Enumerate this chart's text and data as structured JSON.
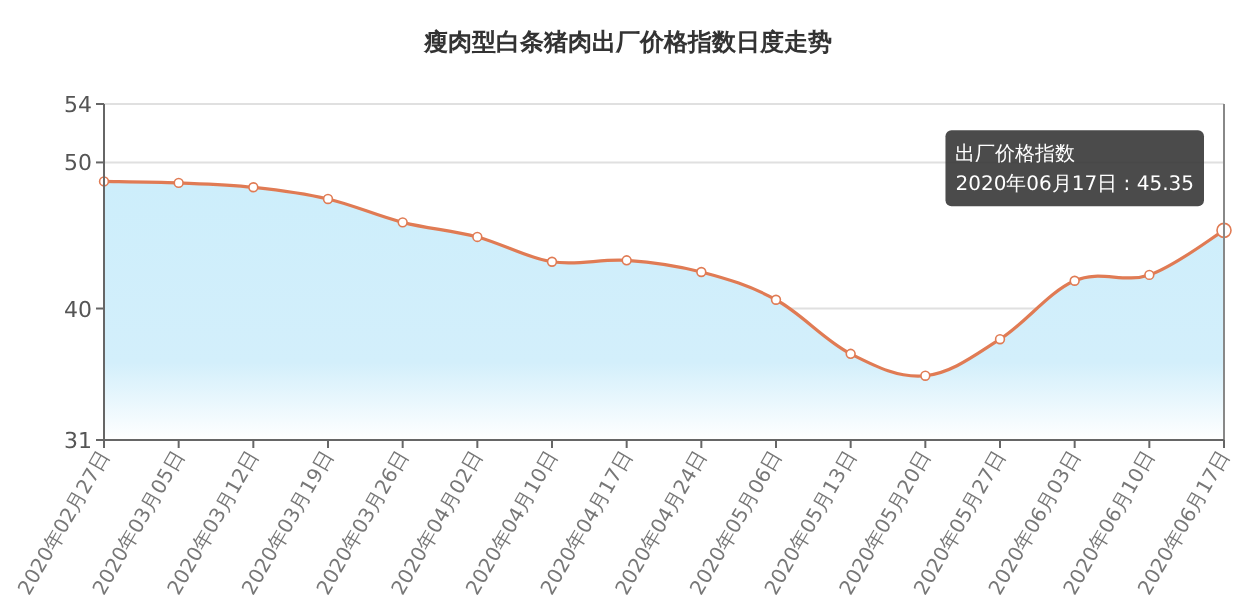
{
  "chart_data": {
    "type": "area",
    "title": "瘦肉型白条猪肉出厂价格指数日度走势",
    "categories": [
      "2020年02月27日",
      "2020年03月05日",
      "2020年03月12日",
      "2020年03月19日",
      "2020年03月26日",
      "2020年04月02日",
      "2020年04月10日",
      "2020年04月17日",
      "2020年04月24日",
      "2020年05月06日",
      "2020年05月13日",
      "2020年05月20日",
      "2020年05月27日",
      "2020年06月03日",
      "2020年06月10日",
      "2020年06月17日"
    ],
    "series": [
      {
        "color": "#e07b54",
        "values": [
          48.7,
          48.6,
          48.3,
          47.5,
          45.9,
          44.9,
          43.2,
          43.3,
          42.5,
          40.6,
          36.9,
          35.4,
          37.9,
          41.9,
          42.3,
          45.35
        ]
      }
    ],
    "ylim": [
      31,
      54
    ],
    "yticks": [
      31,
      40,
      50,
      54
    ],
    "grid": "y",
    "marker": "circle",
    "line_style": "solid",
    "annotations": [
      {
        "text": "出厂价格指数\n2020年06月17日 : 45.35",
        "x": "2020年06月17日",
        "y": 45.35
      }
    ]
  }
}
